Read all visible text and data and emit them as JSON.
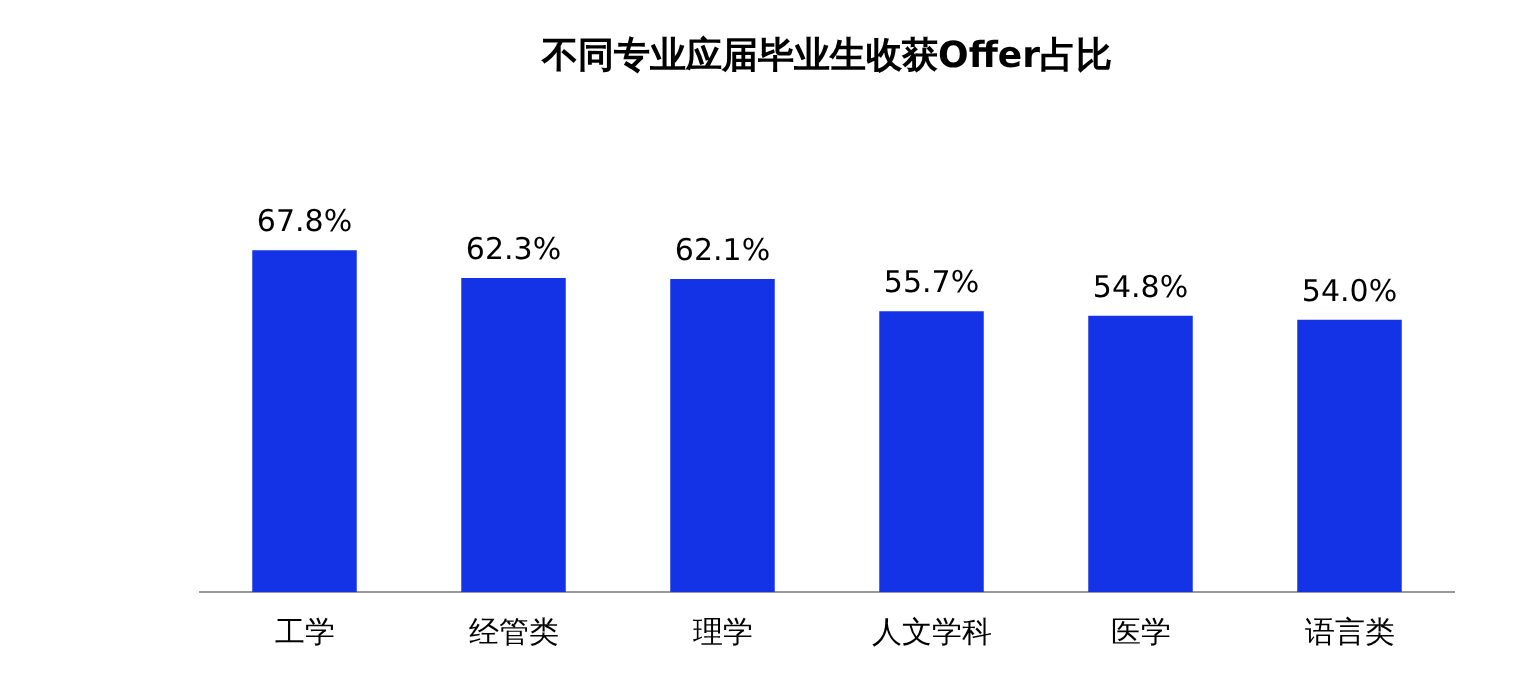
{
  "chart_data": {
    "type": "bar",
    "title": "不同专业应届毕业生收获Offer占比",
    "categories": [
      "工学",
      "经管类",
      "理学",
      "人文学科",
      "医学",
      "语言类"
    ],
    "values": [
      67.8,
      62.3,
      62.1,
      55.7,
      54.8,
      54.0
    ],
    "value_labels": [
      "67.8%",
      "62.3%",
      "62.1%",
      "55.7%",
      "54.8%",
      "54.0%"
    ],
    "color": "#1432e6",
    "grid": false,
    "legend": false
  }
}
